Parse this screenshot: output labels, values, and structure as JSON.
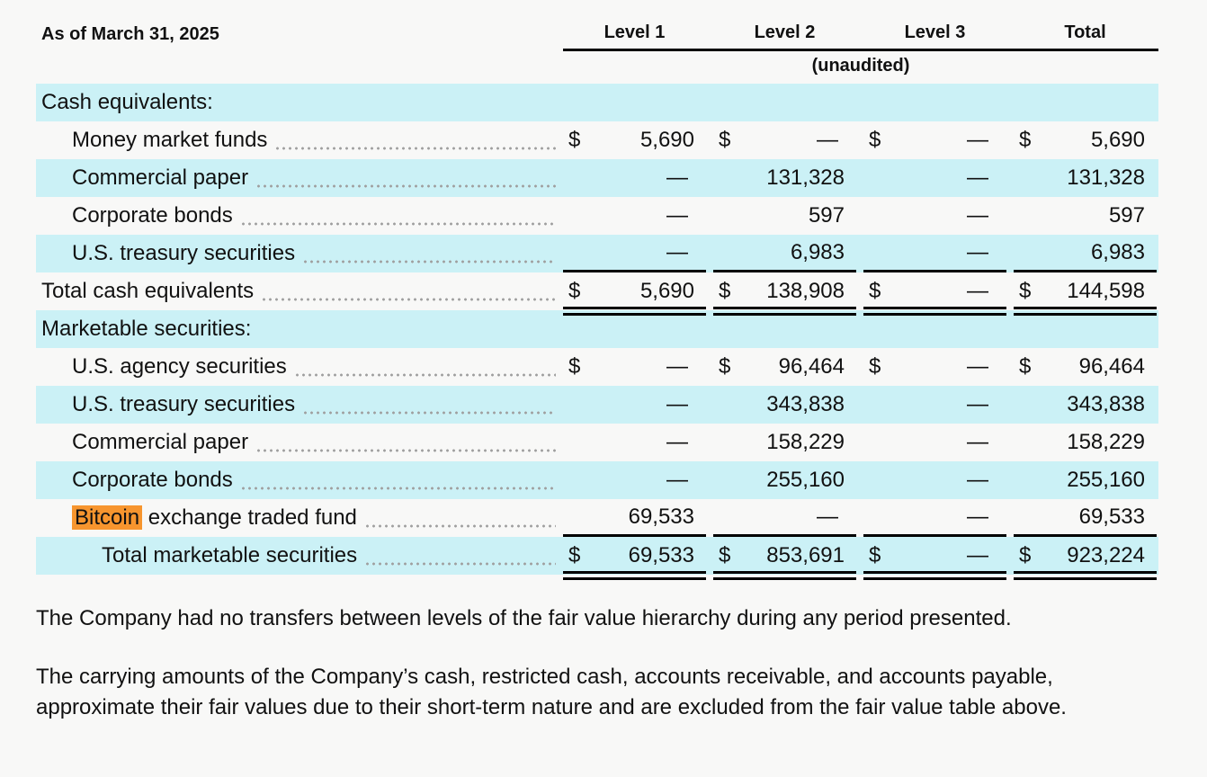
{
  "table": {
    "caption": "As of March 31, 2025",
    "column_headers": [
      "Level 1",
      "Level 2",
      "Level 3",
      "Total"
    ],
    "subheader": "(unaudited)",
    "currency_symbol": "$",
    "empty_value": "—",
    "rows": [
      {
        "label": "Cash equivalents:",
        "section": true,
        "indent": 0
      },
      {
        "label": "Money market funds",
        "indent": 1,
        "dollar": true,
        "values": [
          "5,690",
          "—",
          "—",
          "5,690"
        ]
      },
      {
        "label": "Commercial paper",
        "indent": 1,
        "dollar": false,
        "values": [
          "—",
          "131,328",
          "—",
          "131,328"
        ]
      },
      {
        "label": "Corporate bonds",
        "indent": 1,
        "dollar": false,
        "values": [
          "—",
          "597",
          "—",
          "597"
        ]
      },
      {
        "label": "U.S. treasury securities",
        "indent": 1,
        "dollar": false,
        "values": [
          "—",
          "6,983",
          "—",
          "6,983"
        ],
        "rule_below": true
      },
      {
        "label": "Total cash equivalents",
        "indent": 0,
        "dollar": true,
        "values": [
          "5,690",
          "138,908",
          "—",
          "144,598"
        ],
        "double_rule_below": true
      },
      {
        "label": "Marketable securities:",
        "section": true,
        "indent": 0
      },
      {
        "label": "U.S. agency securities",
        "indent": 1,
        "dollar": true,
        "values": [
          "—",
          "96,464",
          "—",
          "96,464"
        ]
      },
      {
        "label": "U.S. treasury securities",
        "indent": 1,
        "dollar": false,
        "values": [
          "—",
          "343,838",
          "—",
          "343,838"
        ]
      },
      {
        "label": "Commercial paper",
        "indent": 1,
        "dollar": false,
        "values": [
          "—",
          "158,229",
          "—",
          "158,229"
        ]
      },
      {
        "label": "Corporate bonds",
        "indent": 1,
        "dollar": false,
        "values": [
          "—",
          "255,160",
          "—",
          "255,160"
        ]
      },
      {
        "label": "Bitcoin exchange traded fund",
        "highlight_word": "Bitcoin",
        "indent": 1,
        "dollar": false,
        "values": [
          "69,533",
          "—",
          "—",
          "69,533"
        ],
        "rule_below": true
      },
      {
        "label": "Total marketable securities",
        "indent": 2,
        "dollar": true,
        "values": [
          "69,533",
          "853,691",
          "—",
          "923,224"
        ],
        "double_rule_below": true
      }
    ]
  },
  "paragraphs": [
    "The Company had no transfers between levels of the fair value hierarchy during any period presented.",
    "The carrying amounts of the Company’s cash, restricted cash, accounts receivable, and accounts payable, approximate their fair values due to their short-term nature and are excluded from the fair value table above."
  ],
  "colors": {
    "row_highlight": "#cbf1f6",
    "search_highlight": "#f7952e",
    "page_background": "#f8f8f7"
  }
}
